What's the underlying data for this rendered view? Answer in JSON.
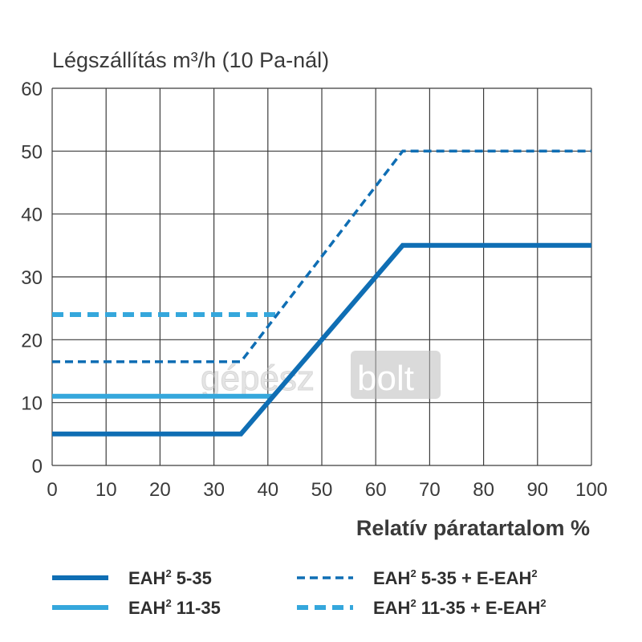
{
  "chart_data": {
    "type": "line",
    "title": "Légszállítás m³/h (10 Pa-nál)",
    "xlabel": "Relatív páratartalom %",
    "ylabel": "",
    "xlim": [
      0,
      100
    ],
    "ylim": [
      0,
      60
    ],
    "x_ticks": [
      "0",
      "10",
      "20",
      "30",
      "40",
      "50",
      "60",
      "70",
      "80",
      "90",
      "100"
    ],
    "y_ticks": [
      "0",
      "10",
      "20",
      "30",
      "40",
      "50",
      "60"
    ],
    "grid": true,
    "legend_position": "bottom",
    "series": [
      {
        "name": "EAH² 5-35",
        "style": "solid",
        "color": "#0f6eb4",
        "points": [
          [
            0,
            5
          ],
          [
            35,
            5
          ],
          [
            65,
            35
          ],
          [
            100,
            35
          ]
        ]
      },
      {
        "name": "EAH² 11-35",
        "style": "solid",
        "color": "#35a7dc",
        "points": [
          [
            0,
            11
          ],
          [
            41,
            11
          ]
        ]
      },
      {
        "name": "EAH² 5-35 + E-EAH²",
        "style": "dashed",
        "color": "#0f6eb4",
        "points": [
          [
            0,
            16.5
          ],
          [
            35,
            16.5
          ],
          [
            65,
            50
          ],
          [
            100,
            50
          ]
        ]
      },
      {
        "name": "EAH² 11-35 + E-EAH²",
        "style": "dashed",
        "color": "#35a7dc",
        "points": [
          [
            0,
            24
          ],
          [
            42,
            24
          ]
        ]
      }
    ],
    "legend": [
      {
        "label_main": "EAH",
        "label_sup": "2",
        "label_rest": " 5-35",
        "series": 0
      },
      {
        "label_main": "EAH",
        "label_sup": "2",
        "label_rest": " 11-35",
        "series": 1
      },
      {
        "label_main": "EAH",
        "label_sup": "2",
        "label_rest": " 5-35 + E-EAH",
        "label_tail_sup": "2",
        "series": 2
      },
      {
        "label_main": "EAH",
        "label_sup": "2",
        "label_rest": " 11-35 + E-EAH",
        "label_tail_sup": "2",
        "series": 3
      }
    ]
  },
  "watermark": {
    "part1": "gépész",
    "part2": "bolt"
  }
}
